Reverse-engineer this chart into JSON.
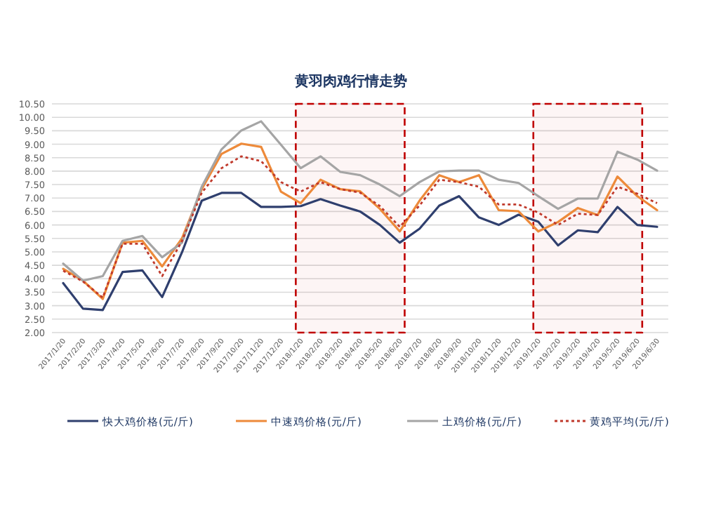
{
  "chart_data": {
    "type": "line",
    "title": "黄羽肉鸡行情走势",
    "categories": [
      "2017/1/20",
      "2017/2/20",
      "2017/3/20",
      "2017/4/20",
      "2017/5/20",
      "2017/6/20",
      "2017/7/20",
      "2017/8/20",
      "2017/9/20",
      "2017/10/20",
      "2017/11/20",
      "2017/12/20",
      "2018/1/20",
      "2018/2/20",
      "2018/3/20",
      "2018/4/20",
      "2018/5/20",
      "2018/6/20",
      "2018/7/20",
      "2018/8/20",
      "2018/9/20",
      "2018/10/20",
      "2018/11/20",
      "2018/12/20",
      "2019/1/20",
      "2019/2/20",
      "2019/3/20",
      "2019/4/20",
      "2019/5/20",
      "2019/6/20",
      "2019/6/30"
    ],
    "series": [
      {
        "name": "快大鸡价格(元/斤)",
        "color": "#2f3f6e",
        "line_style": "solid",
        "values": [
          3.84,
          2.89,
          2.84,
          4.25,
          4.31,
          3.32,
          4.98,
          6.9,
          7.19,
          7.19,
          6.67,
          6.67,
          6.7,
          6.96,
          6.72,
          6.5,
          6.0,
          5.34,
          5.86,
          6.72,
          7.07,
          6.28,
          6.0,
          6.38,
          6.12,
          5.24,
          5.8,
          5.73,
          6.67,
          6.0,
          5.93
        ]
      },
      {
        "name": "中速鸡价格(元/斤)",
        "color": "#ed8a3a",
        "line_style": "solid",
        "values": [
          4.37,
          3.93,
          3.25,
          5.34,
          5.41,
          4.46,
          5.5,
          7.33,
          8.64,
          9.02,
          8.9,
          7.24,
          6.81,
          7.68,
          7.33,
          7.25,
          6.6,
          5.76,
          6.9,
          7.85,
          7.59,
          7.85,
          6.55,
          6.51,
          5.76,
          6.11,
          6.63,
          6.37,
          7.8,
          7.07,
          6.55
        ]
      },
      {
        "name": "土鸡价格(元/斤)",
        "color": "#a5a5a5",
        "line_style": "solid",
        "values": [
          4.56,
          3.93,
          4.1,
          5.41,
          5.59,
          4.8,
          5.34,
          7.42,
          8.81,
          9.51,
          9.85,
          8.98,
          8.11,
          8.55,
          7.97,
          7.85,
          7.5,
          7.07,
          7.59,
          7.99,
          8.02,
          8.02,
          7.68,
          7.56,
          7.07,
          6.6,
          6.98,
          6.98,
          8.72,
          8.43,
          8.02
        ]
      },
      {
        "name": "黄鸡平均(元/斤)",
        "color": "#c0392b",
        "line_style": "dotted",
        "values": [
          4.3,
          3.9,
          3.3,
          5.3,
          5.3,
          4.1,
          5.4,
          7.2,
          8.11,
          8.55,
          8.37,
          7.59,
          7.24,
          7.59,
          7.33,
          7.2,
          6.7,
          5.93,
          6.72,
          7.68,
          7.59,
          7.42,
          6.76,
          6.76,
          6.46,
          6.0,
          6.42,
          6.37,
          7.42,
          7.16,
          6.81
        ]
      }
    ],
    "ylim": [
      2,
      10.5
    ],
    "yticks": [
      {
        "value": 2,
        "label": "2.00"
      },
      {
        "value": 2.5,
        "label": "2.50"
      },
      {
        "value": 3,
        "label": "3.00"
      },
      {
        "value": 3.5,
        "label": "3.50"
      },
      {
        "value": 4,
        "label": "4.00"
      },
      {
        "value": 4.5,
        "label": "4.50"
      },
      {
        "value": 5,
        "label": "5.00"
      },
      {
        "value": 5.5,
        "label": "5.50"
      },
      {
        "value": 6,
        "label": "6.00"
      },
      {
        "value": 6.5,
        "label": "6.50"
      },
      {
        "value": 7,
        "label": "7.00"
      },
      {
        "value": 7.5,
        "label": "7.50"
      },
      {
        "value": 8,
        "label": "8.00"
      },
      {
        "value": 8.5,
        "label": "8.50"
      },
      {
        "value": 9,
        "label": "9.00"
      },
      {
        "value": 9.5,
        "label": "9.50"
      },
      {
        "value": 10,
        "label": "10.00"
      },
      {
        "value": 10.5,
        "label": "10.50"
      }
    ],
    "grid": "y",
    "legend": "bottom",
    "marker": "none",
    "bands": [
      {
        "axis": "x",
        "from": "2018/1/20",
        "to": "2018/6/20",
        "color": "#c00000"
      },
      {
        "axis": "x",
        "from": "2019/1/20",
        "to": "2019/6/20",
        "color": "#c00000"
      }
    ]
  }
}
